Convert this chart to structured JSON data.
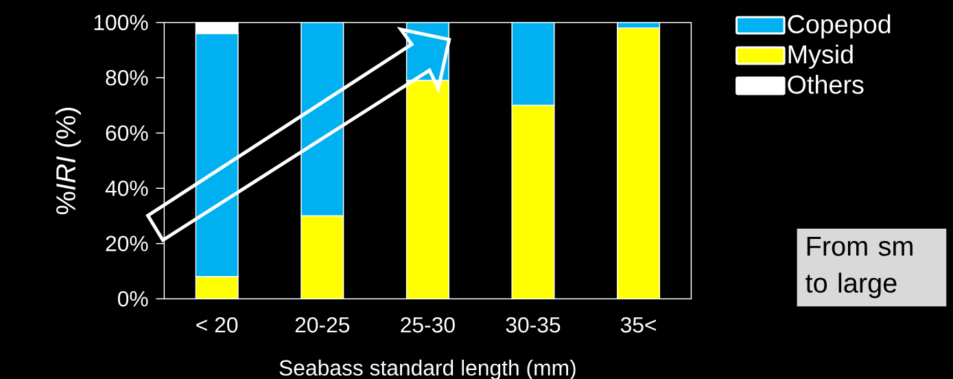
{
  "chart_data": {
    "type": "bar",
    "stacked": true,
    "xlabel": "Seabass standard length (mm)",
    "ylabel": "%*IRI* (%)",
    "categories": [
      "< 20",
      "20-25",
      "25-30",
      "30-35",
      "35<"
    ],
    "series": [
      {
        "name": "Mysid",
        "color": "#ffff00",
        "values": [
          8,
          30,
          79,
          70,
          98
        ]
      },
      {
        "name": "Copepod",
        "color": "#00b0f0",
        "values": [
          88,
          70,
          21,
          30,
          2
        ]
      },
      {
        "name": "Others",
        "color": "#ffffff",
        "values": [
          4,
          null,
          null,
          null,
          null
        ]
      }
    ],
    "ylim": [
      0,
      100
    ],
    "yticks": [
      {
        "value": 0,
        "label": "0%"
      },
      {
        "value": 20,
        "label": "20%"
      },
      {
        "value": 40,
        "label": "40%"
      },
      {
        "value": 60,
        "label": "60%"
      },
      {
        "value": 80,
        "label": "80%"
      },
      {
        "value": 100,
        "label": "100%"
      }
    ],
    "legend": "top right",
    "annotations": [
      "From sm to large"
    ]
  }
}
